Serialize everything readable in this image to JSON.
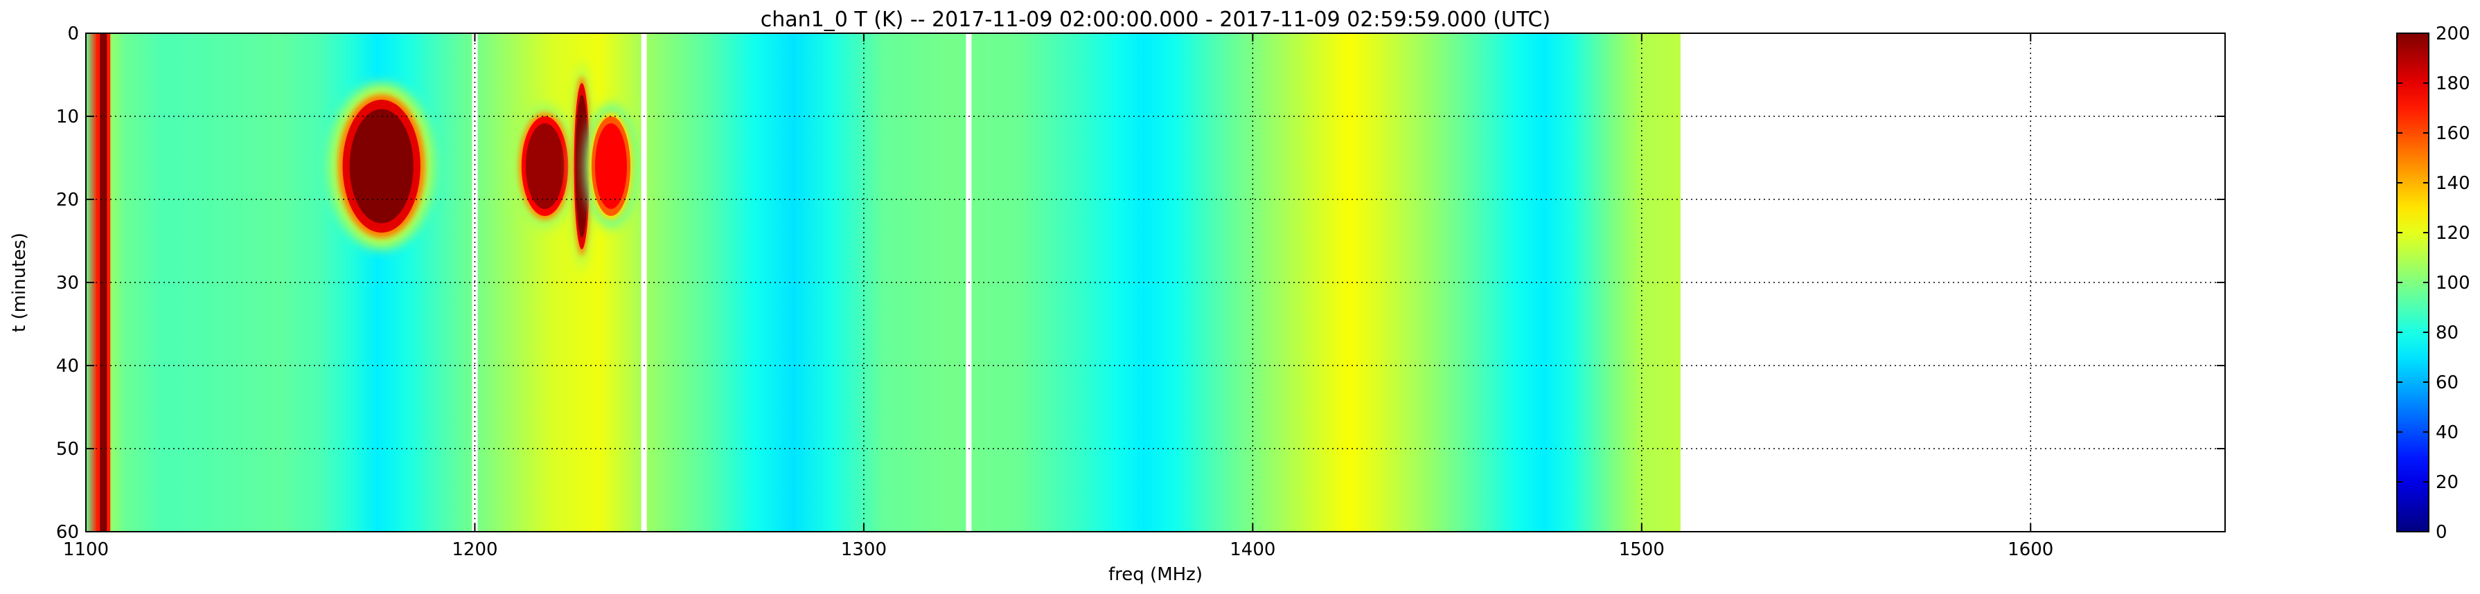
{
  "chart_data": {
    "type": "heatmap",
    "title": "chan1_0 T (K) -- 2017-11-09 02:00:00.000 - 2017-11-09 02:59:59.000 (UTC)",
    "xlabel": "freq (MHz)",
    "ylabel": "t (minutes)",
    "xlim": [
      1100,
      1650
    ],
    "ylim": [
      60,
      0
    ],
    "y_inverted": true,
    "x_ticks": [
      1100,
      1200,
      1300,
      1400,
      1500,
      1600
    ],
    "y_ticks": [
      0,
      10,
      20,
      30,
      40,
      50,
      60
    ],
    "grid": true,
    "colormap": "jet",
    "colorbar": {
      "range": [
        0,
        200
      ],
      "ticks": [
        0,
        20,
        40,
        60,
        80,
        100,
        120,
        140,
        160,
        180,
        200
      ]
    },
    "data_extent_mhz": [
      1100,
      1510
    ],
    "baseline_spectrum": {
      "freq_mhz": [
        1100,
        1103,
        1104.5,
        1106,
        1110,
        1120,
        1135,
        1150,
        1160,
        1168,
        1175,
        1183,
        1192,
        1200,
        1210,
        1220,
        1232,
        1245,
        1260,
        1272,
        1282,
        1292,
        1305,
        1322,
        1340,
        1355,
        1365,
        1372,
        1380,
        1390,
        1405,
        1418,
        1425,
        1432,
        1445,
        1458,
        1468,
        1475,
        1482,
        1492,
        1500,
        1510
      ],
      "temperature_k": [
        95,
        170,
        200,
        105,
        96,
        90,
        92,
        94,
        90,
        82,
        72,
        80,
        90,
        98,
        108,
        118,
        122,
        105,
        92,
        78,
        70,
        80,
        95,
        98,
        96,
        86,
        78,
        72,
        78,
        90,
        105,
        118,
        124,
        118,
        105,
        90,
        78,
        72,
        80,
        98,
        110,
        112
      ]
    },
    "features": [
      {
        "freq_mhz": 1104.5,
        "t_range_min": [
          0,
          60
        ],
        "peak_k": 200
      },
      {
        "freq_mhz": 1176,
        "t_center_min": 16,
        "freq_halfwidth_mhz": 10,
        "t_halfwidth_min": 8,
        "peak_k": 200
      },
      {
        "freq_mhz": 1218,
        "t_center_min": 16,
        "freq_halfwidth_mhz": 6,
        "t_halfwidth_min": 6,
        "peak_k": 195
      },
      {
        "freq_mhz": 1227.5,
        "t_center_min": 16,
        "freq_halfwidth_mhz": 2,
        "t_halfwidth_min": 10,
        "peak_k": 200
      },
      {
        "freq_mhz": 1235,
        "t_center_min": 16,
        "freq_halfwidth_mhz": 5,
        "t_halfwidth_min": 6,
        "peak_k": 175
      }
    ],
    "blank_channels_mhz": [
      1200,
      1243.5,
      1327
    ]
  }
}
